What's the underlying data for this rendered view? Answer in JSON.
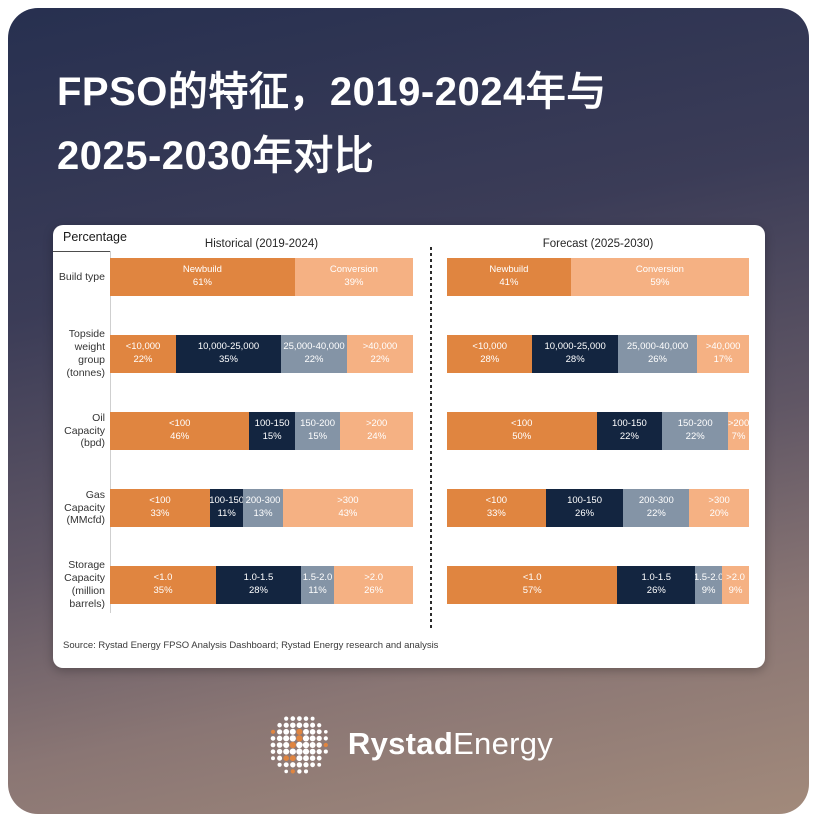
{
  "page_title": {
    "line1": "FPSO的特征，2019-2024年与",
    "line2": "2025-2030年对比"
  },
  "chart": {
    "axis_label": "Percentage",
    "panel_headers": {
      "historical": "Historical (2019-2024)",
      "forecast": "Forecast (2025-2030)"
    },
    "source": "Source: Rystad Energy FPSO Analysis Dashboard; Rystad Energy research and analysis"
  },
  "chart_data": {
    "type": "bar",
    "subtype": "horizontal-stacked-100pct",
    "unit": "%",
    "legend_position": "none",
    "grid": false,
    "colors": {
      "orange": "#E08540",
      "navy": "#132540",
      "gray_blue": "#8494A6",
      "light_orange": "#F5B183"
    },
    "panels": [
      "historical",
      "forecast"
    ],
    "rows": [
      {
        "id": "build-type",
        "label_lines": [
          "Build type"
        ],
        "historical": [
          {
            "label": "Newbuild",
            "value": 61,
            "color": "orange"
          },
          {
            "label": "Conversion",
            "value": 39,
            "color": "light_orange"
          }
        ],
        "forecast": [
          {
            "label": "Newbuild",
            "value": 41,
            "color": "orange"
          },
          {
            "label": "Conversion",
            "value": 59,
            "color": "light_orange"
          }
        ]
      },
      {
        "id": "topside-weight-group",
        "label_lines": [
          "Topside",
          "weight",
          "group",
          "(tonnes)"
        ],
        "historical": [
          {
            "label": "<10,000",
            "value": 22,
            "color": "orange"
          },
          {
            "label": "10,000-25,000",
            "value": 35,
            "color": "navy"
          },
          {
            "label": "25,000-40,000",
            "value": 22,
            "color": "gray_blue"
          },
          {
            "label": ">40,000",
            "value": 22,
            "color": "light_orange"
          }
        ],
        "forecast": [
          {
            "label": "<10,000",
            "value": 28,
            "color": "orange"
          },
          {
            "label": "10,000-25,000",
            "value": 28,
            "color": "navy"
          },
          {
            "label": "25,000-40,000",
            "value": 26,
            "color": "gray_blue"
          },
          {
            "label": ">40,000",
            "value": 17,
            "color": "light_orange"
          }
        ]
      },
      {
        "id": "oil-capacity",
        "label_lines": [
          "Oil",
          "Capacity",
          "(bpd)"
        ],
        "historical": [
          {
            "label": "<100",
            "value": 46,
            "color": "orange"
          },
          {
            "label": "100-150",
            "value": 15,
            "color": "navy"
          },
          {
            "label": "150-200",
            "value": 15,
            "color": "gray_blue"
          },
          {
            "label": ">200",
            "value": 24,
            "color": "light_orange"
          }
        ],
        "forecast": [
          {
            "label": "<100",
            "value": 50,
            "color": "orange"
          },
          {
            "label": "100-150",
            "value": 22,
            "color": "navy"
          },
          {
            "label": "150-200",
            "value": 22,
            "color": "gray_blue"
          },
          {
            "label": ">200",
            "value": 7,
            "color": "light_orange"
          }
        ]
      },
      {
        "id": "gas-capacity",
        "label_lines": [
          "Gas",
          "Capacity",
          "(MMcfd)"
        ],
        "historical": [
          {
            "label": "<100",
            "value": 33,
            "color": "orange"
          },
          {
            "label": "100-150",
            "value": 11,
            "color": "navy"
          },
          {
            "label": "200-300",
            "value": 13,
            "color": "gray_blue"
          },
          {
            "label": ">300",
            "value": 43,
            "color": "light_orange"
          }
        ],
        "forecast": [
          {
            "label": "<100",
            "value": 33,
            "color": "orange"
          },
          {
            "label": "100-150",
            "value": 26,
            "color": "navy"
          },
          {
            "label": "200-300",
            "value": 22,
            "color": "gray_blue"
          },
          {
            "label": ">300",
            "value": 20,
            "color": "light_orange"
          }
        ]
      },
      {
        "id": "storage-capacity",
        "label_lines": [
          "Storage",
          "Capacity",
          "(million",
          "barrels)"
        ],
        "historical": [
          {
            "label": "<1.0",
            "value": 35,
            "color": "orange"
          },
          {
            "label": "1.0-1.5",
            "value": 28,
            "color": "navy"
          },
          {
            "label": "1.5-2.0",
            "value": 11,
            "color": "gray_blue"
          },
          {
            "label": ">2.0",
            "value": 26,
            "color": "light_orange"
          }
        ],
        "forecast": [
          {
            "label": "<1.0",
            "value": 57,
            "color": "orange"
          },
          {
            "label": "1.0-1.5",
            "value": 26,
            "color": "navy"
          },
          {
            "label": "1.5-2.0",
            "value": 9,
            "color": "gray_blue"
          },
          {
            "label": ">2.0",
            "value": 9,
            "color": "light_orange"
          }
        ]
      }
    ]
  },
  "footer_logo": {
    "brand_bold": "Rystad",
    "brand_light": "Energy",
    "accent_color": "#E08540"
  }
}
